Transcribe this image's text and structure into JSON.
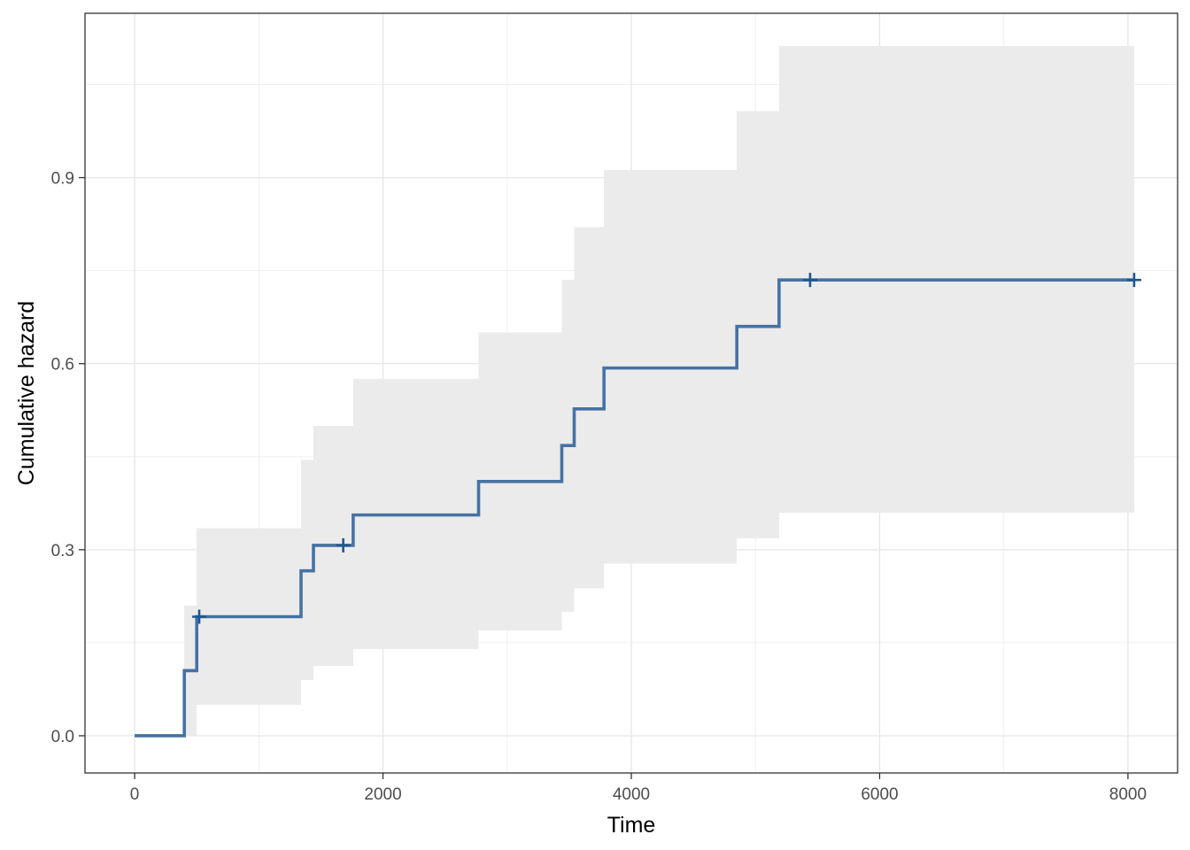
{
  "chart_data": {
    "type": "line",
    "step": true,
    "xlabel": "Time",
    "ylabel": "Cumulative hazard",
    "xlim": [
      -400,
      8400
    ],
    "ylim": [
      -0.06,
      1.165
    ],
    "x_ticks": [
      0,
      2000,
      4000,
      6000,
      8000
    ],
    "x_tick_labels": [
      "0",
      "2000",
      "4000",
      "6000",
      "8000"
    ],
    "y_ticks": [
      0.0,
      0.3,
      0.6,
      0.9
    ],
    "y_tick_labels": [
      "0.0",
      "0.3",
      "0.6",
      "0.9"
    ],
    "x_minor_ticks": [
      1000,
      3000,
      5000,
      7000
    ],
    "y_minor_ticks": [
      0.15,
      0.45,
      0.75,
      1.05
    ],
    "grid": true,
    "series": [
      {
        "line_color": "#4672a3",
        "ci_fill_color": "#ebebeb",
        "steps": [
          {
            "x": 0,
            "y": 0.0,
            "lower": 0.0,
            "upper": 0.0
          },
          {
            "x": 400,
            "y": 0.105,
            "lower": 0.0,
            "upper": 0.21
          },
          {
            "x": 500,
            "y": 0.192,
            "lower": 0.05,
            "upper": 0.335
          },
          {
            "x": 1340,
            "y": 0.266,
            "lower": 0.09,
            "upper": 0.445
          },
          {
            "x": 1440,
            "y": 0.307,
            "lower": 0.113,
            "upper": 0.5
          },
          {
            "x": 1760,
            "y": 0.356,
            "lower": 0.14,
            "upper": 0.575
          },
          {
            "x": 2770,
            "y": 0.41,
            "lower": 0.17,
            "upper": 0.65
          },
          {
            "x": 3440,
            "y": 0.468,
            "lower": 0.2,
            "upper": 0.735
          },
          {
            "x": 3540,
            "y": 0.527,
            "lower": 0.238,
            "upper": 0.82
          },
          {
            "x": 3780,
            "y": 0.593,
            "lower": 0.278,
            "upper": 0.912
          },
          {
            "x": 4850,
            "y": 0.66,
            "lower": 0.318,
            "upper": 1.007
          },
          {
            "x": 5190,
            "y": 0.735,
            "lower": 0.36,
            "upper": 1.112
          }
        ],
        "end_x": 8050,
        "censor_points": [
          {
            "x": 520,
            "y": 0.192
          },
          {
            "x": 1680,
            "y": 0.307
          },
          {
            "x": 5440,
            "y": 0.735
          },
          {
            "x": 8050,
            "y": 0.735
          }
        ]
      }
    ]
  }
}
